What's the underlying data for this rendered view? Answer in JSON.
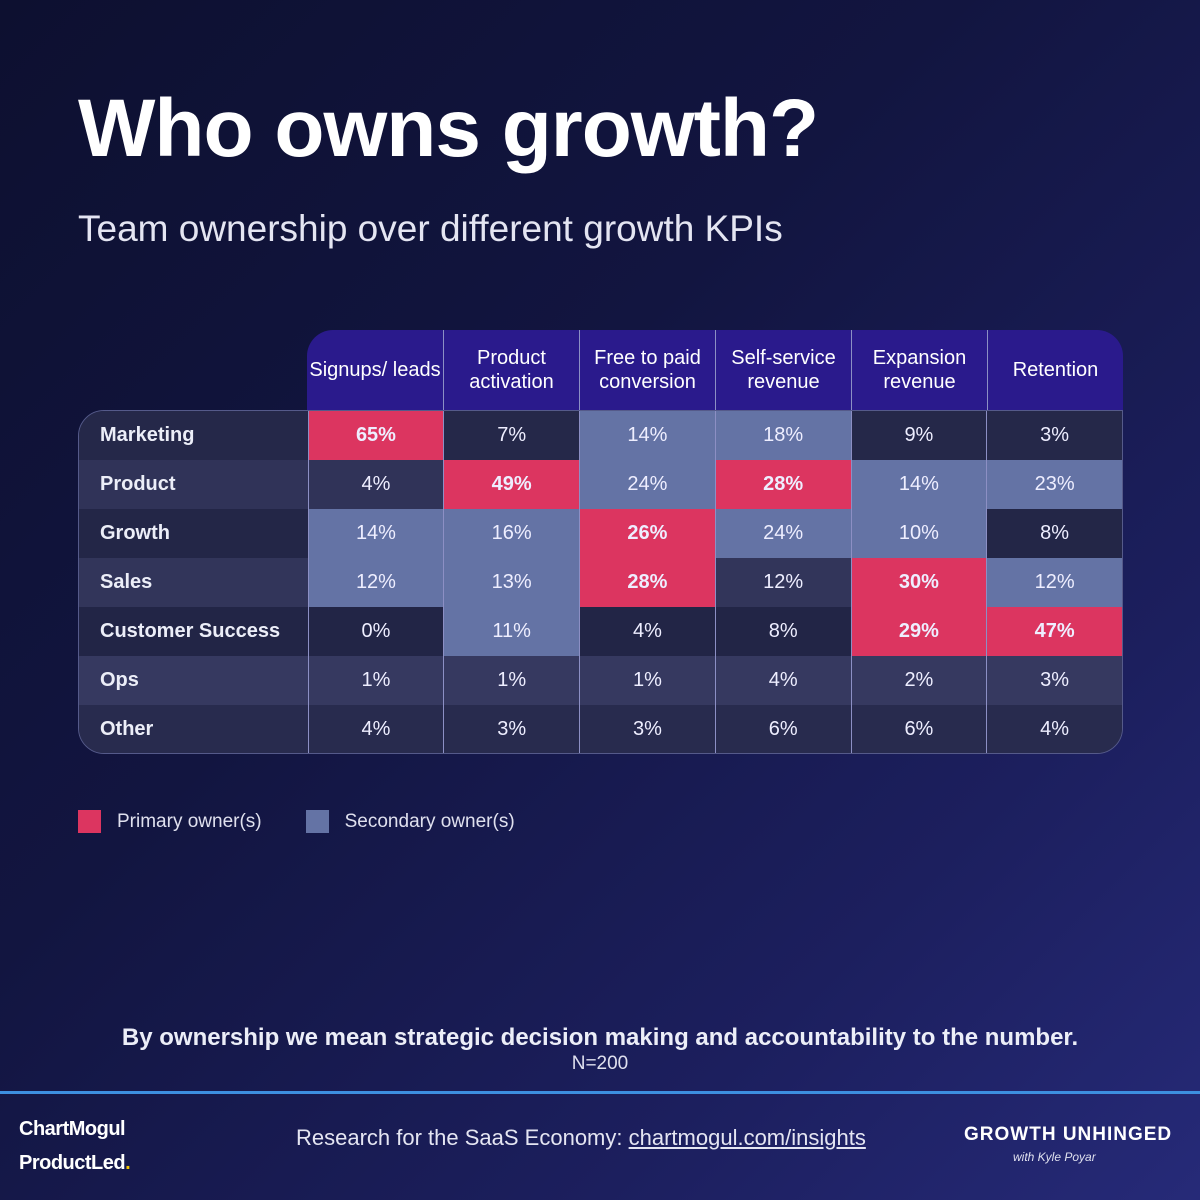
{
  "title": "Who owns growth?",
  "subtitle": "Team ownership over different growth KPIs",
  "colors": {
    "primary": "#dc3560",
    "secondary": "#6473a5",
    "header": "#2a1a8c",
    "accent_line": "#3d8fe0"
  },
  "chart_data": {
    "type": "table",
    "columns": [
      "Signups/ leads",
      "Product activation",
      "Free to paid conversion",
      "Self-service revenue",
      "Expansion revenue",
      "Retention"
    ],
    "rows": [
      {
        "team": "Marketing",
        "values": [
          "65%",
          "7%",
          "14%",
          "18%",
          "9%",
          "3%"
        ],
        "owner": [
          "P",
          "",
          "S",
          "S",
          "",
          ""
        ]
      },
      {
        "team": "Product",
        "values": [
          "4%",
          "49%",
          "24%",
          "28%",
          "14%",
          "23%"
        ],
        "owner": [
          "",
          "P",
          "S",
          "P",
          "S",
          "S"
        ]
      },
      {
        "team": "Growth",
        "values": [
          "14%",
          "16%",
          "26%",
          "24%",
          "10%",
          "8%"
        ],
        "owner": [
          "S",
          "S",
          "P",
          "S",
          "S",
          ""
        ]
      },
      {
        "team": "Sales",
        "values": [
          "12%",
          "13%",
          "28%",
          "12%",
          "30%",
          "12%"
        ],
        "owner": [
          "S",
          "S",
          "P",
          "",
          "P",
          "S"
        ]
      },
      {
        "team": "Customer Success",
        "values": [
          "0%",
          "11%",
          "4%",
          "8%",
          "29%",
          "47%"
        ],
        "owner": [
          "",
          "S",
          "",
          "",
          "P",
          "P"
        ]
      },
      {
        "team": "Ops",
        "values": [
          "1%",
          "1%",
          "1%",
          "4%",
          "2%",
          "3%"
        ],
        "owner": [
          "",
          "",
          "",
          "",
          "",
          ""
        ]
      },
      {
        "team": "Other",
        "values": [
          "4%",
          "3%",
          "3%",
          "6%",
          "6%",
          "4%"
        ],
        "owner": [
          "",
          "",
          "",
          "",
          "",
          ""
        ]
      }
    ],
    "legend": [
      "Primary owner(s)",
      "Secondary owner(s)"
    ]
  },
  "note": "By ownership we mean strategic decision making and accountability to the number.",
  "sample": "N=200",
  "footer": {
    "logo1": "ChartMogul",
    "logo2": "ProductLed",
    "logo2_dot": ".",
    "text": "Research for the SaaS Economy: ",
    "link": "chartmogul.com/insights",
    "brand": "GROWTH UNHINGED",
    "brand_sub": "with Kyle Poyar"
  }
}
